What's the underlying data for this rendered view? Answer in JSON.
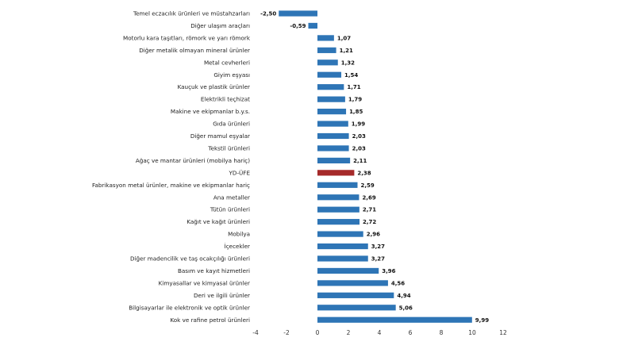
{
  "chart_data": {
    "type": "bar",
    "orientation": "horizontal",
    "xlim": [
      -4,
      12
    ],
    "xticks": [
      "-4",
      "-2",
      "0",
      "2",
      "4",
      "6",
      "8",
      "10",
      "12"
    ],
    "grid": false,
    "legend": "none",
    "colors": {
      "default": "#2e75b6",
      "highlight": "#a52a2a"
    },
    "highlight_category": "YD-ÜFE",
    "categories": [
      "Temel eczacılık ürünleri ve müstahzarları",
      "Diğer ulaşım araçları",
      "Motorlu kara taşıtları, römork ve yarı römork",
      "Diğer metalik olmayan mineral ürünler",
      "Metal cevherleri",
      "Giyim eşyası",
      "Kauçuk ve plastik ürünler",
      "Elektrikli teçhizat",
      "Makine ve ekipmanlar b.y.s.",
      "Gıda ürünleri",
      "Diğer mamul eşyalar",
      "Tekstil ürünleri",
      "Ağaç ve mantar ürünleri (mobilya hariç)",
      "YD-ÜFE",
      "Fabrikasyon metal ürünler, makine ve ekipmanlar hariç",
      "Ana metaller",
      "Tütün ürünleri",
      "Kağıt ve kağıt ürünleri",
      "Mobilya",
      "İçecekler",
      "Diğer madencilik ve taş ocakçılığı ürünleri",
      "Basım ve kayıt hizmetleri",
      "Kimyasallar ve kimyasal ürünler",
      "Deri ve ilgili ürünler",
      "Bilgisayarlar ile elektronik ve optik ürünler",
      "Kok ve rafine petrol ürünleri"
    ],
    "values": [
      -2.5,
      -0.59,
      1.07,
      1.21,
      1.32,
      1.54,
      1.71,
      1.79,
      1.85,
      1.99,
      2.03,
      2.03,
      2.11,
      2.38,
      2.59,
      2.69,
      2.71,
      2.72,
      2.96,
      3.27,
      3.27,
      3.96,
      4.56,
      4.94,
      5.06,
      9.99
    ],
    "value_labels": [
      "-2,50",
      "-0,59",
      "1,07",
      "1,21",
      "1,32",
      "1,54",
      "1,71",
      "1,79",
      "1,85",
      "1,99",
      "2,03",
      "2,03",
      "2,11",
      "2,38",
      "2,59",
      "2,69",
      "2,71",
      "2,72",
      "2,96",
      "3,27",
      "3,27",
      "3,96",
      "4,56",
      "4,94",
      "5,06",
      "9,99"
    ]
  }
}
